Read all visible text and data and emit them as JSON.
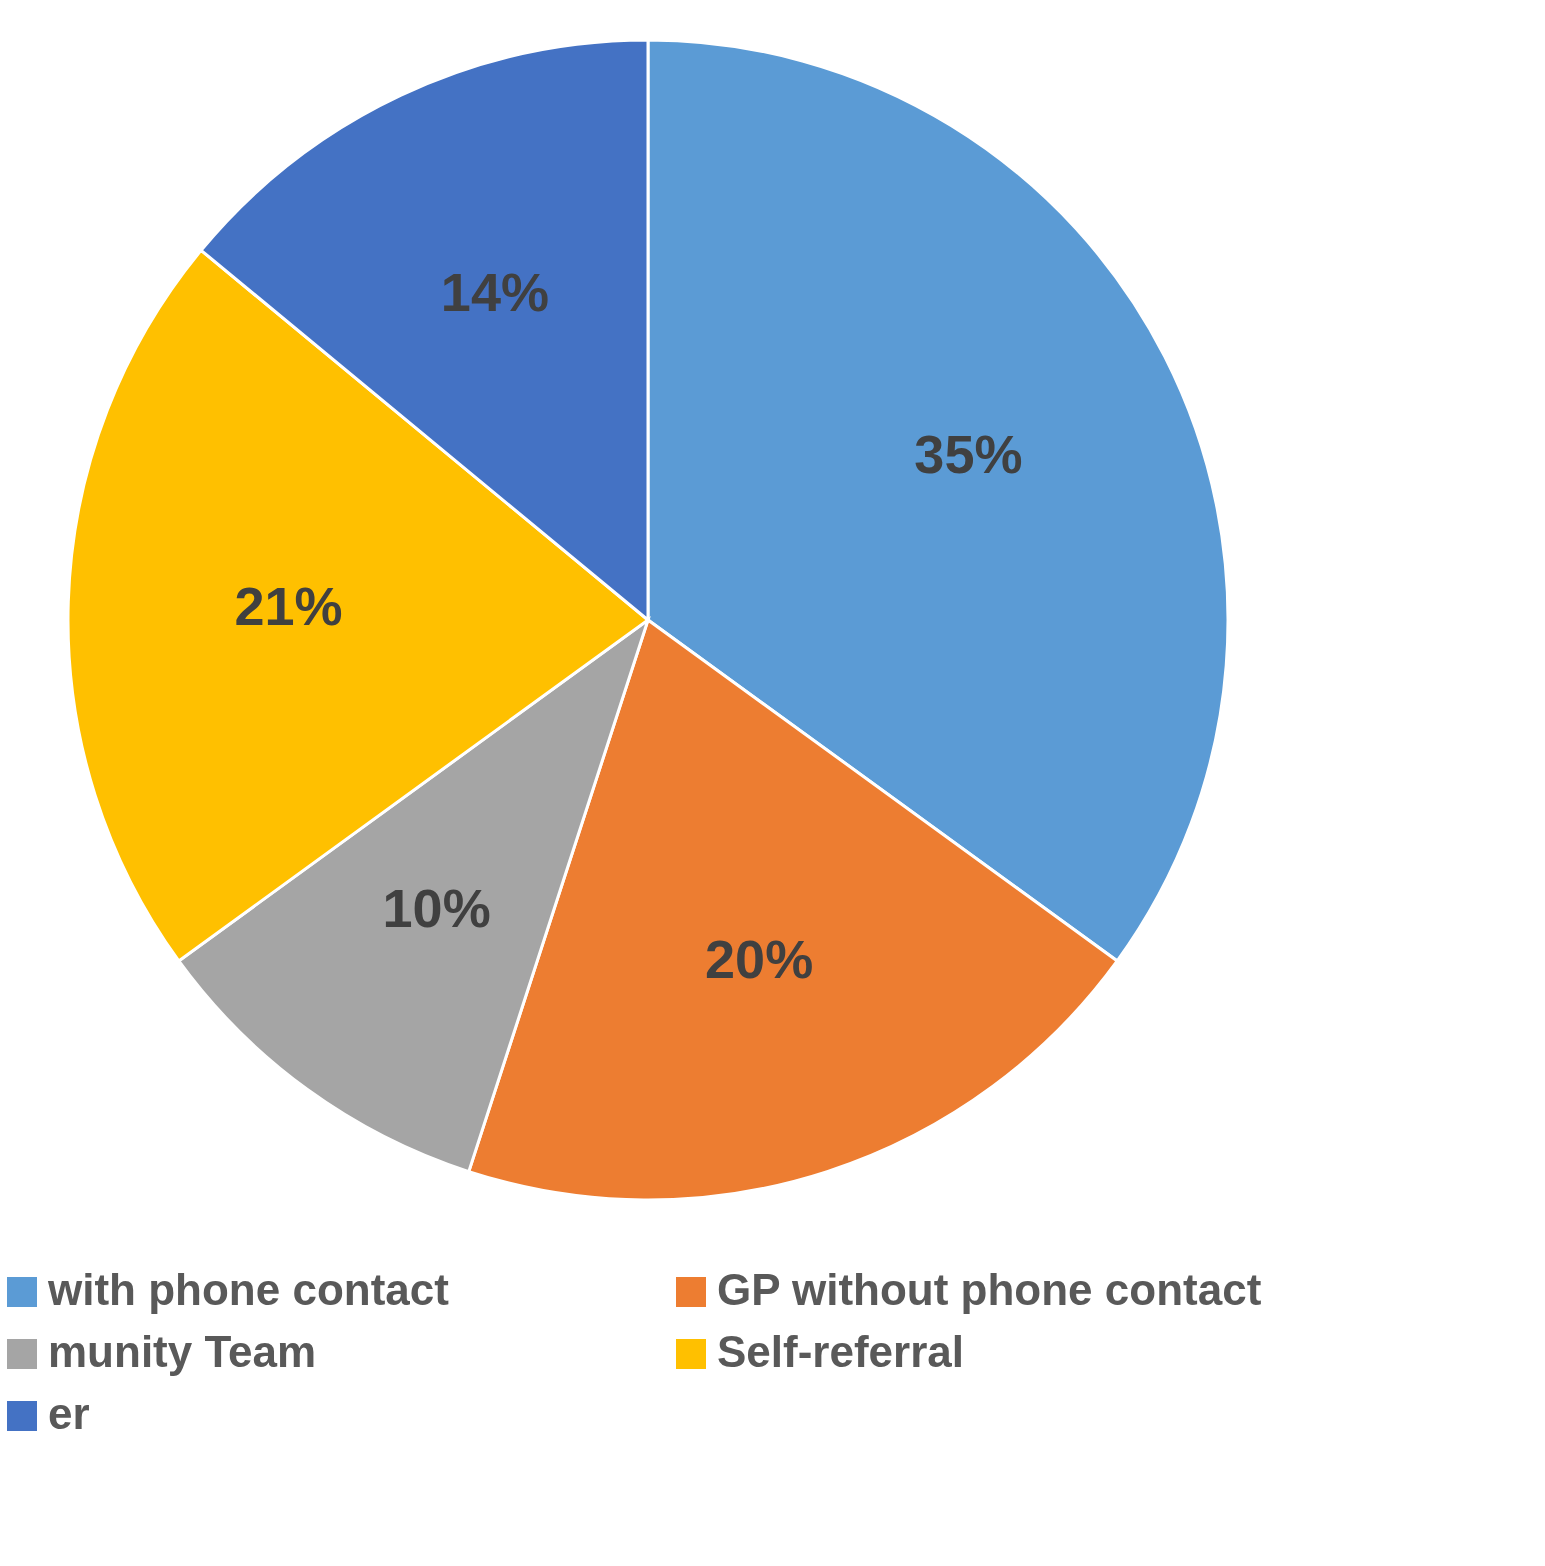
{
  "chart_data": {
    "type": "pie",
    "categories": [
      "with phone contact",
      "GP without phone contact",
      "munity Team",
      "Self-referral",
      "er"
    ],
    "values": [
      35,
      20,
      10,
      21,
      14
    ],
    "colors": [
      "#5b9bd5",
      "#ed7d31",
      "#a5a5a5",
      "#ffc000",
      "#4472c4"
    ],
    "value_labels": [
      "35%",
      "20%",
      "10%",
      "21%",
      "14%"
    ],
    "legend": "bottom"
  }
}
